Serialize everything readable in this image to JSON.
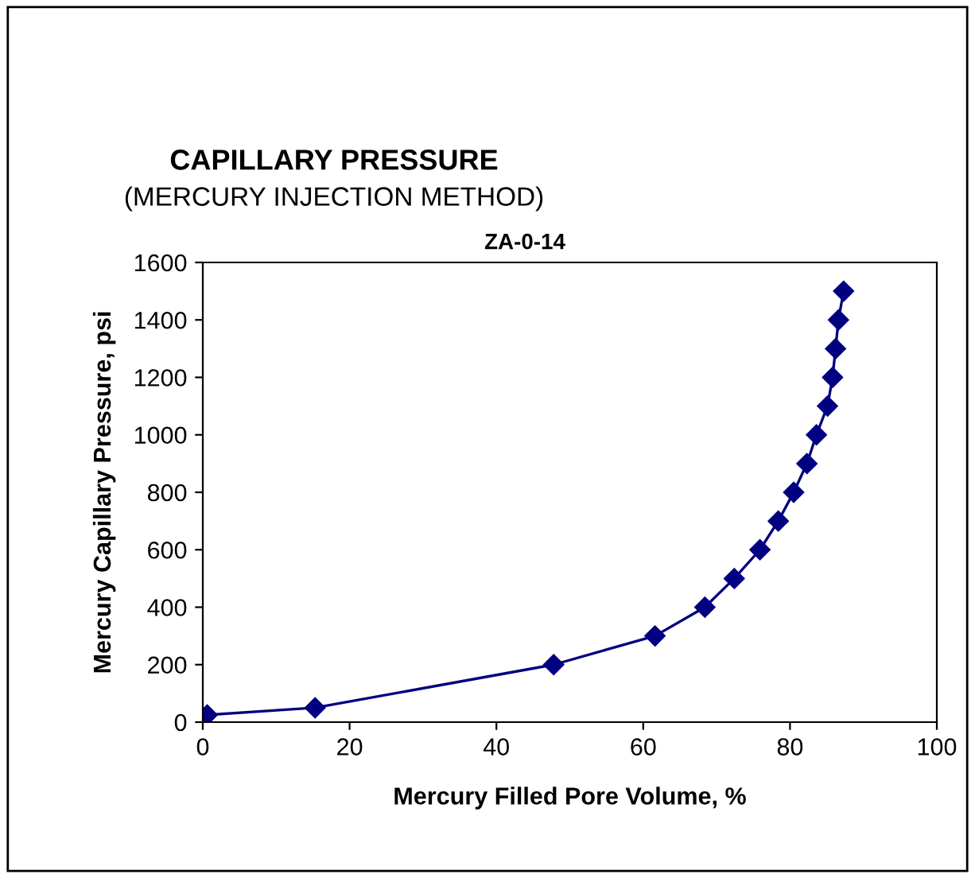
{
  "chart_data": {
    "type": "line",
    "title": "CAPILLARY PRESSURE",
    "subtitle": "(MERCURY INJECTION METHOD)",
    "annotations": [
      "ZA-0-14"
    ],
    "xlabel": "Mercury Filled Pore Volume, %",
    "ylabel": "Mercury Capillary Pressure, psi",
    "x": [
      0.6,
      15.3,
      47.8,
      61.6,
      68.4,
      72.4,
      75.9,
      78.4,
      80.5,
      82.3,
      83.6,
      85.1,
      85.8,
      86.2,
      86.6,
      87.3
    ],
    "series": [
      {
        "color": "#000080",
        "values": [
          25,
          50,
          200,
          300,
          400,
          500,
          600,
          700,
          800,
          900,
          1000,
          1100,
          1200,
          1300,
          1400,
          1500
        ]
      }
    ],
    "marker": "diamond",
    "line_style": "solid",
    "grid": false,
    "legend": false,
    "xlim": [
      0,
      100
    ],
    "xticks": [
      0,
      20,
      40,
      60,
      80,
      100
    ],
    "ylim": [
      0,
      1600
    ],
    "yticks": [
      0,
      200,
      400,
      600,
      800,
      1000,
      1200,
      1400,
      1600
    ]
  }
}
